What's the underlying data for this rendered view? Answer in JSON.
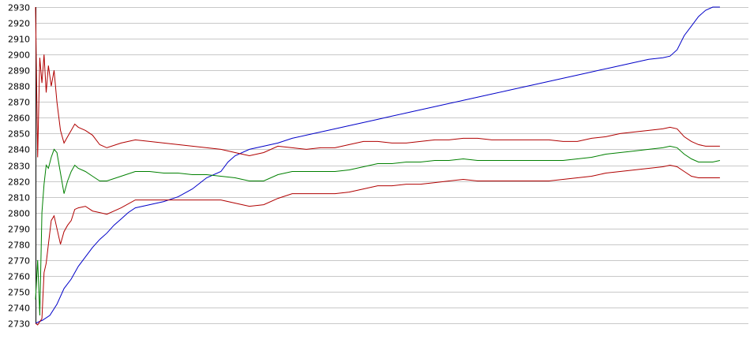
{
  "chart_data": {
    "type": "line",
    "title": "",
    "xlabel": "",
    "ylabel": "",
    "ylim": [
      2730,
      2930
    ],
    "xlim": [
      0,
      100
    ],
    "grid": true,
    "yticks": [
      "2930",
      "2920",
      "2910",
      "2900",
      "2890",
      "2880",
      "2870",
      "2860",
      "2850",
      "2840",
      "2830",
      "2820",
      "2810",
      "2800",
      "2790",
      "2780",
      "2770",
      "2760",
      "2750",
      "2740",
      "2730"
    ],
    "colors": {
      "blue_series": "#0000c8",
      "green_series": "#008000",
      "red_series": "#b00000"
    },
    "series": [
      {
        "color": "#0000c8",
        "points": [
          [
            0,
            2730
          ],
          [
            1,
            2732
          ],
          [
            2,
            2735
          ],
          [
            3,
            2742
          ],
          [
            4,
            2752
          ],
          [
            5,
            2758
          ],
          [
            6,
            2766
          ],
          [
            7,
            2772
          ],
          [
            8,
            2778
          ],
          [
            9,
            2783
          ],
          [
            10,
            2787
          ],
          [
            11,
            2792
          ],
          [
            12,
            2796
          ],
          [
            13,
            2800
          ],
          [
            14,
            2803
          ],
          [
            16,
            2805
          ],
          [
            18,
            2807
          ],
          [
            20,
            2810
          ],
          [
            22,
            2815
          ],
          [
            24,
            2822
          ],
          [
            26,
            2826
          ],
          [
            27,
            2832
          ],
          [
            28,
            2836
          ],
          [
            30,
            2840
          ],
          [
            32,
            2842
          ],
          [
            34,
            2844
          ],
          [
            36,
            2847
          ],
          [
            38,
            2849
          ],
          [
            40,
            2851
          ],
          [
            42,
            2853
          ],
          [
            44,
            2855
          ],
          [
            46,
            2857
          ],
          [
            48,
            2859
          ],
          [
            50,
            2861
          ],
          [
            52,
            2863
          ],
          [
            54,
            2865
          ],
          [
            56,
            2867
          ],
          [
            58,
            2869
          ],
          [
            60,
            2871
          ],
          [
            62,
            2873
          ],
          [
            64,
            2875
          ],
          [
            66,
            2877
          ],
          [
            68,
            2879
          ],
          [
            70,
            2881
          ],
          [
            72,
            2883
          ],
          [
            74,
            2885
          ],
          [
            76,
            2887
          ],
          [
            78,
            2889
          ],
          [
            80,
            2891
          ],
          [
            82,
            2893
          ],
          [
            84,
            2895
          ],
          [
            86,
            2897
          ],
          [
            88,
            2898
          ],
          [
            89,
            2899
          ],
          [
            90,
            2903
          ],
          [
            91,
            2912
          ],
          [
            92,
            2918
          ],
          [
            93,
            2924
          ],
          [
            94,
            2928
          ],
          [
            95,
            2930
          ],
          [
            96,
            2930
          ]
        ]
      },
      {
        "color": "#b00000",
        "points": [
          [
            0,
            2930
          ],
          [
            0.3,
            2835
          ],
          [
            0.6,
            2898
          ],
          [
            0.9,
            2882
          ],
          [
            1.2,
            2900
          ],
          [
            1.5,
            2876
          ],
          [
            1.8,
            2893
          ],
          [
            2.2,
            2880
          ],
          [
            2.6,
            2890
          ],
          [
            3,
            2870
          ],
          [
            3.5,
            2852
          ],
          [
            4,
            2844
          ],
          [
            4.5,
            2848
          ],
          [
            5,
            2852
          ],
          [
            5.5,
            2856
          ],
          [
            6,
            2854
          ],
          [
            7,
            2852
          ],
          [
            8,
            2849
          ],
          [
            9,
            2843
          ],
          [
            10,
            2841
          ],
          [
            12,
            2844
          ],
          [
            14,
            2846
          ],
          [
            16,
            2845
          ],
          [
            18,
            2844
          ],
          [
            20,
            2843
          ],
          [
            22,
            2842
          ],
          [
            24,
            2841
          ],
          [
            26,
            2840
          ],
          [
            28,
            2838
          ],
          [
            30,
            2836
          ],
          [
            32,
            2838
          ],
          [
            34,
            2842
          ],
          [
            36,
            2841
          ],
          [
            38,
            2840
          ],
          [
            40,
            2841
          ],
          [
            42,
            2841
          ],
          [
            44,
            2843
          ],
          [
            46,
            2845
          ],
          [
            48,
            2845
          ],
          [
            50,
            2844
          ],
          [
            52,
            2844
          ],
          [
            54,
            2845
          ],
          [
            56,
            2846
          ],
          [
            58,
            2846
          ],
          [
            60,
            2847
          ],
          [
            62,
            2847
          ],
          [
            64,
            2846
          ],
          [
            66,
            2846
          ],
          [
            68,
            2846
          ],
          [
            70,
            2846
          ],
          [
            72,
            2846
          ],
          [
            74,
            2845
          ],
          [
            76,
            2845
          ],
          [
            78,
            2847
          ],
          [
            80,
            2848
          ],
          [
            82,
            2850
          ],
          [
            84,
            2851
          ],
          [
            86,
            2852
          ],
          [
            88,
            2853
          ],
          [
            89,
            2854
          ],
          [
            90,
            2853
          ],
          [
            91,
            2848
          ],
          [
            92,
            2845
          ],
          [
            93,
            2843
          ],
          [
            94,
            2842
          ],
          [
            95,
            2842
          ],
          [
            96,
            2842
          ]
        ]
      },
      {
        "color": "#008000",
        "points": [
          [
            0,
            2745
          ],
          [
            0.3,
            2770
          ],
          [
            0.6,
            2735
          ],
          [
            0.9,
            2800
          ],
          [
            1.2,
            2818
          ],
          [
            1.5,
            2830
          ],
          [
            1.8,
            2828
          ],
          [
            2.2,
            2835
          ],
          [
            2.6,
            2840
          ],
          [
            3,
            2838
          ],
          [
            3.5,
            2825
          ],
          [
            4,
            2812
          ],
          [
            4.5,
            2820
          ],
          [
            5,
            2826
          ],
          [
            5.5,
            2830
          ],
          [
            6,
            2828
          ],
          [
            7,
            2826
          ],
          [
            8,
            2823
          ],
          [
            9,
            2820
          ],
          [
            10,
            2820
          ],
          [
            12,
            2823
          ],
          [
            14,
            2826
          ],
          [
            16,
            2826
          ],
          [
            18,
            2825
          ],
          [
            20,
            2825
          ],
          [
            22,
            2824
          ],
          [
            24,
            2824
          ],
          [
            26,
            2823
          ],
          [
            28,
            2822
          ],
          [
            30,
            2820
          ],
          [
            32,
            2820
          ],
          [
            34,
            2824
          ],
          [
            36,
            2826
          ],
          [
            38,
            2826
          ],
          [
            40,
            2826
          ],
          [
            42,
            2826
          ],
          [
            44,
            2827
          ],
          [
            46,
            2829
          ],
          [
            48,
            2831
          ],
          [
            50,
            2831
          ],
          [
            52,
            2832
          ],
          [
            54,
            2832
          ],
          [
            56,
            2833
          ],
          [
            58,
            2833
          ],
          [
            60,
            2834
          ],
          [
            62,
            2833
          ],
          [
            64,
            2833
          ],
          [
            66,
            2833
          ],
          [
            68,
            2833
          ],
          [
            70,
            2833
          ],
          [
            72,
            2833
          ],
          [
            74,
            2833
          ],
          [
            76,
            2834
          ],
          [
            78,
            2835
          ],
          [
            80,
            2837
          ],
          [
            82,
            2838
          ],
          [
            84,
            2839
          ],
          [
            86,
            2840
          ],
          [
            88,
            2841
          ],
          [
            89,
            2842
          ],
          [
            90,
            2841
          ],
          [
            91,
            2837
          ],
          [
            92,
            2834
          ],
          [
            93,
            2832
          ],
          [
            94,
            2832
          ],
          [
            95,
            2832
          ],
          [
            96,
            2833
          ]
        ]
      },
      {
        "color": "#b00000",
        "points": [
          [
            0,
            2730
          ],
          [
            0.3,
            2729
          ],
          [
            0.6,
            2731
          ],
          [
            0.9,
            2733
          ],
          [
            1.2,
            2762
          ],
          [
            1.5,
            2768
          ],
          [
            1.8,
            2780
          ],
          [
            2.2,
            2795
          ],
          [
            2.6,
            2798
          ],
          [
            3,
            2790
          ],
          [
            3.5,
            2780
          ],
          [
            4,
            2788
          ],
          [
            4.5,
            2792
          ],
          [
            5,
            2795
          ],
          [
            5.5,
            2802
          ],
          [
            6,
            2803
          ],
          [
            7,
            2804
          ],
          [
            8,
            2801
          ],
          [
            9,
            2800
          ],
          [
            10,
            2799
          ],
          [
            12,
            2803
          ],
          [
            14,
            2808
          ],
          [
            16,
            2808
          ],
          [
            18,
            2808
          ],
          [
            20,
            2808
          ],
          [
            22,
            2808
          ],
          [
            24,
            2808
          ],
          [
            26,
            2808
          ],
          [
            28,
            2806
          ],
          [
            30,
            2804
          ],
          [
            32,
            2805
          ],
          [
            34,
            2809
          ],
          [
            36,
            2812
          ],
          [
            38,
            2812
          ],
          [
            40,
            2812
          ],
          [
            42,
            2812
          ],
          [
            44,
            2813
          ],
          [
            46,
            2815
          ],
          [
            48,
            2817
          ],
          [
            50,
            2817
          ],
          [
            52,
            2818
          ],
          [
            54,
            2818
          ],
          [
            56,
            2819
          ],
          [
            58,
            2820
          ],
          [
            60,
            2821
          ],
          [
            62,
            2820
          ],
          [
            64,
            2820
          ],
          [
            66,
            2820
          ],
          [
            68,
            2820
          ],
          [
            70,
            2820
          ],
          [
            72,
            2820
          ],
          [
            74,
            2821
          ],
          [
            76,
            2822
          ],
          [
            78,
            2823
          ],
          [
            80,
            2825
          ],
          [
            82,
            2826
          ],
          [
            84,
            2827
          ],
          [
            86,
            2828
          ],
          [
            88,
            2829
          ],
          [
            89,
            2830
          ],
          [
            90,
            2829
          ],
          [
            91,
            2826
          ],
          [
            92,
            2823
          ],
          [
            93,
            2822
          ],
          [
            94,
            2822
          ],
          [
            95,
            2822
          ],
          [
            96,
            2822
          ]
        ]
      }
    ]
  }
}
